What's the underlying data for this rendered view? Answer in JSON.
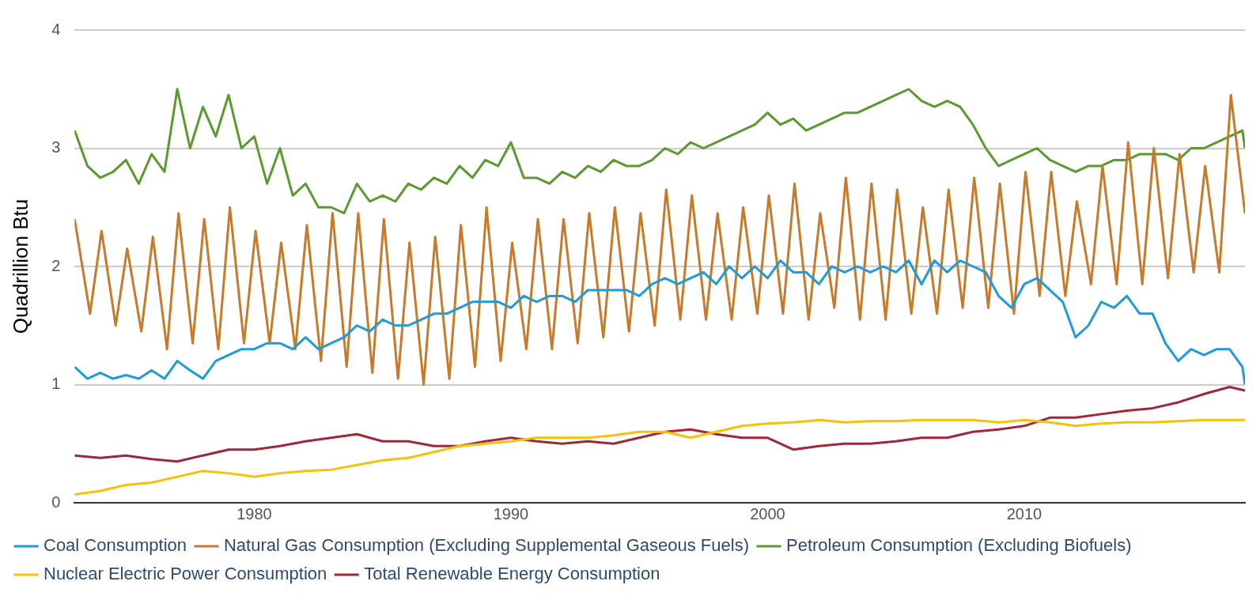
{
  "chart_data": {
    "type": "line",
    "ylabel": "Quadrillion Btu",
    "xlim": [
      1973,
      2018.6
    ],
    "xticks": [
      1980,
      1990,
      2000,
      2010
    ],
    "ylim": [
      0,
      4
    ],
    "yticks": [
      0,
      1,
      2,
      3,
      4
    ],
    "grid": "y",
    "legend": "bottom",
    "marker": "none",
    "line_style": "solid",
    "series": [
      {
        "name": "Coal Consumption",
        "color": "#1f9bd7",
        "x": [
          1973,
          1973.5,
          1974,
          1974.5,
          1975,
          1975.5,
          1976,
          1976.5,
          1977,
          1977.5,
          1978,
          1978.5,
          1979,
          1979.5,
          1980,
          1980.5,
          1981,
          1981.5,
          1982,
          1982.5,
          1983,
          1983.5,
          1984,
          1984.5,
          1985,
          1985.5,
          1986,
          1986.5,
          1987,
          1987.5,
          1988,
          1988.5,
          1989,
          1989.5,
          1990,
          1990.5,
          1991,
          1991.5,
          1992,
          1992.5,
          1993,
          1993.5,
          1994,
          1994.5,
          1995,
          1995.5,
          1996,
          1996.5,
          1997,
          1997.5,
          1998,
          1998.5,
          1999,
          1999.5,
          2000,
          2000.5,
          2001,
          2001.5,
          2002,
          2002.5,
          2003,
          2003.5,
          2004,
          2004.5,
          2005,
          2005.5,
          2006,
          2006.5,
          2007,
          2007.5,
          2008,
          2008.5,
          2009,
          2009.5,
          2010,
          2010.5,
          2011,
          2011.5,
          2012,
          2012.5,
          2013,
          2013.5,
          2014,
          2014.5,
          2015,
          2015.5,
          2016,
          2016.5,
          2017,
          2017.5,
          2018,
          2018.5,
          2018.6
        ],
        "values": [
          1.15,
          1.05,
          1.1,
          1.05,
          1.08,
          1.05,
          1.12,
          1.05,
          1.2,
          1.12,
          1.05,
          1.2,
          1.25,
          1.3,
          1.3,
          1.35,
          1.35,
          1.3,
          1.4,
          1.3,
          1.35,
          1.4,
          1.5,
          1.45,
          1.55,
          1.5,
          1.5,
          1.55,
          1.6,
          1.6,
          1.65,
          1.7,
          1.7,
          1.7,
          1.65,
          1.75,
          1.7,
          1.75,
          1.75,
          1.7,
          1.8,
          1.8,
          1.8,
          1.8,
          1.75,
          1.85,
          1.9,
          1.85,
          1.9,
          1.95,
          1.85,
          2.0,
          1.9,
          2.0,
          1.9,
          2.05,
          1.95,
          1.95,
          1.85,
          2.0,
          1.95,
          2.0,
          1.95,
          2.0,
          1.95,
          2.05,
          1.85,
          2.05,
          1.95,
          2.05,
          2.0,
          1.95,
          1.75,
          1.65,
          1.85,
          1.9,
          1.8,
          1.7,
          1.4,
          1.5,
          1.7,
          1.65,
          1.75,
          1.6,
          1.6,
          1.35,
          1.2,
          1.3,
          1.25,
          1.3,
          1.3,
          1.15,
          1.0
        ]
      },
      {
        "name": "Natural Gas Consumption (Excluding Supplemental Gaseous Fuels)",
        "color": "#c87a2a",
        "x": [
          1973,
          1973.6,
          1974.05,
          1974.6,
          1975.05,
          1975.6,
          1976.05,
          1976.6,
          1977.05,
          1977.6,
          1978.05,
          1978.6,
          1979.05,
          1979.6,
          1980.05,
          1980.6,
          1981.05,
          1981.6,
          1982.05,
          1982.6,
          1983.05,
          1983.6,
          1984.05,
          1984.6,
          1985.05,
          1985.6,
          1986.05,
          1986.6,
          1987.05,
          1987.6,
          1988.05,
          1988.6,
          1989.05,
          1989.6,
          1990.05,
          1990.6,
          1991.05,
          1991.6,
          1992.05,
          1992.6,
          1993.05,
          1993.6,
          1994.05,
          1994.6,
          1995.05,
          1995.6,
          1996.05,
          1996.6,
          1997.05,
          1997.6,
          1998.05,
          1998.6,
          1999.05,
          1999.6,
          2000.05,
          2000.6,
          2001.05,
          2001.6,
          2002.05,
          2002.6,
          2003.05,
          2003.6,
          2004.05,
          2004.6,
          2005.05,
          2005.6,
          2006.05,
          2006.6,
          2007.05,
          2007.6,
          2008.05,
          2008.6,
          2009.05,
          2009.6,
          2010.05,
          2010.6,
          2011.05,
          2011.6,
          2012.05,
          2012.6,
          2013.05,
          2013.6,
          2014.05,
          2014.6,
          2015.05,
          2015.6,
          2016.05,
          2016.6,
          2017.05,
          2017.6,
          2018.05,
          2018.6
        ],
        "values": [
          2.4,
          1.6,
          2.3,
          1.5,
          2.15,
          1.45,
          2.25,
          1.3,
          2.45,
          1.35,
          2.4,
          1.3,
          2.5,
          1.35,
          2.3,
          1.35,
          2.2,
          1.3,
          2.35,
          1.2,
          2.45,
          1.15,
          2.45,
          1.1,
          2.4,
          1.05,
          2.2,
          1.0,
          2.25,
          1.05,
          2.35,
          1.15,
          2.5,
          1.2,
          2.2,
          1.3,
          2.4,
          1.3,
          2.4,
          1.35,
          2.45,
          1.4,
          2.5,
          1.45,
          2.45,
          1.5,
          2.65,
          1.55,
          2.6,
          1.55,
          2.45,
          1.55,
          2.5,
          1.6,
          2.6,
          1.6,
          2.7,
          1.55,
          2.45,
          1.65,
          2.75,
          1.55,
          2.7,
          1.55,
          2.65,
          1.6,
          2.5,
          1.6,
          2.65,
          1.65,
          2.75,
          1.65,
          2.7,
          1.6,
          2.8,
          1.75,
          2.8,
          1.75,
          2.55,
          1.85,
          2.85,
          1.85,
          3.05,
          1.85,
          3.0,
          1.9,
          2.95,
          1.95,
          2.85,
          1.95,
          3.45,
          2.45
        ]
      },
      {
        "name": "Petroleum Consumption (Excluding Biofuels)",
        "color": "#5a9a2e",
        "x": [
          1973,
          1973.5,
          1974,
          1974.5,
          1975,
          1975.5,
          1976,
          1976.5,
          1977,
          1977.5,
          1978,
          1978.5,
          1979,
          1979.5,
          1980,
          1980.5,
          1981,
          1981.5,
          1982,
          1982.5,
          1983,
          1983.5,
          1984,
          1984.5,
          1985,
          1985.5,
          1986,
          1986.5,
          1987,
          1987.5,
          1988,
          1988.5,
          1989,
          1989.5,
          1990,
          1990.5,
          1991,
          1991.5,
          1992,
          1992.5,
          1993,
          1993.5,
          1994,
          1994.5,
          1995,
          1995.5,
          1996,
          1996.5,
          1997,
          1997.5,
          1998,
          1998.5,
          1999,
          1999.5,
          2000,
          2000.5,
          2001,
          2001.5,
          2002,
          2002.5,
          2003,
          2003.5,
          2004,
          2004.5,
          2005,
          2005.5,
          2006,
          2006.5,
          2007,
          2007.5,
          2008,
          2008.5,
          2009,
          2009.5,
          2010,
          2010.5,
          2011,
          2011.5,
          2012,
          2012.5,
          2013,
          2013.5,
          2014,
          2014.5,
          2015,
          2015.5,
          2016,
          2016.5,
          2017,
          2017.5,
          2018,
          2018.5,
          2018.6
        ],
        "values": [
          3.15,
          2.85,
          2.75,
          2.8,
          2.9,
          2.7,
          2.95,
          2.8,
          3.5,
          3.0,
          3.35,
          3.1,
          3.45,
          3.0,
          3.1,
          2.7,
          3.0,
          2.6,
          2.7,
          2.5,
          2.5,
          2.45,
          2.7,
          2.55,
          2.6,
          2.55,
          2.7,
          2.65,
          2.75,
          2.7,
          2.85,
          2.75,
          2.9,
          2.85,
          3.05,
          2.75,
          2.75,
          2.7,
          2.8,
          2.75,
          2.85,
          2.8,
          2.9,
          2.85,
          2.85,
          2.9,
          3.0,
          2.95,
          3.05,
          3.0,
          3.05,
          3.1,
          3.15,
          3.2,
          3.3,
          3.2,
          3.25,
          3.15,
          3.2,
          3.25,
          3.3,
          3.3,
          3.35,
          3.4,
          3.45,
          3.5,
          3.4,
          3.35,
          3.4,
          3.35,
          3.2,
          3.0,
          2.85,
          2.9,
          2.95,
          3.0,
          2.9,
          2.85,
          2.8,
          2.85,
          2.85,
          2.9,
          2.9,
          2.95,
          2.95,
          2.95,
          2.9,
          3.0,
          3.0,
          3.05,
          3.1,
          3.15,
          3.0
        ]
      },
      {
        "name": "Nuclear Electric Power Consumption",
        "color": "#f7c10a",
        "x": [
          1973,
          1974,
          1975,
          1976,
          1977,
          1978,
          1979,
          1980,
          1981,
          1982,
          1983,
          1984,
          1985,
          1986,
          1987,
          1988,
          1989,
          1990,
          1991,
          1992,
          1993,
          1994,
          1995,
          1996,
          1997,
          1998,
          1999,
          2000,
          2001,
          2002,
          2003,
          2004,
          2005,
          2006,
          2007,
          2008,
          2009,
          2010,
          2011,
          2012,
          2013,
          2014,
          2015,
          2016,
          2017,
          2018,
          2018.6
        ],
        "values": [
          0.07,
          0.1,
          0.15,
          0.17,
          0.22,
          0.27,
          0.25,
          0.22,
          0.25,
          0.27,
          0.28,
          0.32,
          0.36,
          0.38,
          0.43,
          0.48,
          0.5,
          0.52,
          0.55,
          0.55,
          0.55,
          0.57,
          0.6,
          0.6,
          0.55,
          0.6,
          0.65,
          0.67,
          0.68,
          0.7,
          0.68,
          0.69,
          0.69,
          0.7,
          0.7,
          0.7,
          0.68,
          0.7,
          0.68,
          0.65,
          0.67,
          0.68,
          0.68,
          0.69,
          0.7,
          0.7,
          0.7
        ]
      },
      {
        "name": "Total Renewable Energy Consumption",
        "color": "#a02737",
        "x": [
          1973,
          1974,
          1975,
          1976,
          1977,
          1978,
          1979,
          1980,
          1981,
          1982,
          1983,
          1984,
          1985,
          1986,
          1987,
          1988,
          1989,
          1990,
          1991,
          1992,
          1993,
          1994,
          1995,
          1996,
          1997,
          1998,
          1999,
          2000,
          2001,
          2002,
          2003,
          2004,
          2005,
          2006,
          2007,
          2008,
          2009,
          2010,
          2011,
          2012,
          2013,
          2014,
          2015,
          2016,
          2017,
          2018,
          2018.6
        ],
        "values": [
          0.4,
          0.38,
          0.4,
          0.37,
          0.35,
          0.4,
          0.45,
          0.45,
          0.48,
          0.52,
          0.55,
          0.58,
          0.52,
          0.52,
          0.48,
          0.48,
          0.52,
          0.55,
          0.52,
          0.5,
          0.52,
          0.5,
          0.55,
          0.6,
          0.62,
          0.58,
          0.55,
          0.55,
          0.45,
          0.48,
          0.5,
          0.5,
          0.52,
          0.55,
          0.55,
          0.6,
          0.62,
          0.65,
          0.72,
          0.72,
          0.75,
          0.78,
          0.8,
          0.85,
          0.92,
          0.98,
          0.95
        ]
      }
    ]
  }
}
